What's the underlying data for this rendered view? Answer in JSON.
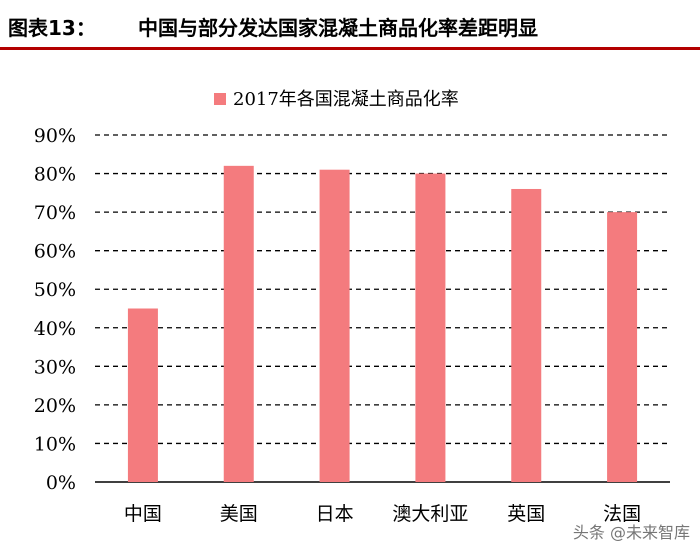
{
  "header": {
    "figure_label": "图表13：",
    "title": "中国与部分发达国家混凝土商品化率差距明显"
  },
  "watermark": "头条 @未来智库",
  "chart_data": {
    "type": "bar",
    "categories": [
      "中国",
      "美国",
      "日本",
      "澳大利亚",
      "英国",
      "法国"
    ],
    "series": [
      {
        "name": "2017年各国混凝土商品化率",
        "values": [
          45,
          82,
          81,
          80,
          76,
          70
        ]
      }
    ],
    "ylim": [
      0,
      90
    ],
    "yticks": [
      "0%",
      "10%",
      "20%",
      "30%",
      "40%",
      "50%",
      "60%",
      "70%",
      "80%",
      "90%"
    ],
    "grid": true,
    "legend_position": "top-center",
    "colors": {
      "bar": "#f47b7e",
      "grid": "#000000"
    }
  }
}
